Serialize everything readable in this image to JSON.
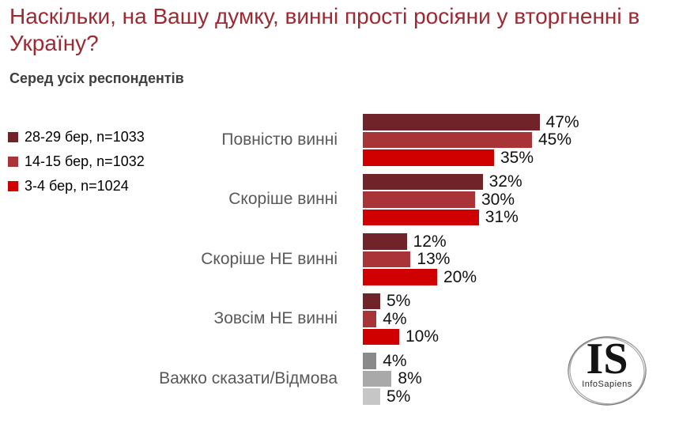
{
  "header": {
    "title": "Наскільки, на Вашу думку, винні прості росіяни у вторгненні в Україну?",
    "subtitle": "Серед усіх респондентів"
  },
  "legend": {
    "position": "left",
    "items": [
      {
        "label": "28-29 бер, n=1033",
        "color": "#702329"
      },
      {
        "label": "14-15 бер, n=1032",
        "color": "#A93438"
      },
      {
        "label": "3-4 бер, n=1024",
        "color": "#D00000"
      }
    ]
  },
  "chart_data": {
    "type": "bar",
    "orientation": "horizontal",
    "title": "Наскільки, на Вашу думку, винні прості росіяни у вторгненні в Україну?",
    "subtitle": "Серед усіх респондентів",
    "xlim": [
      0,
      50
    ],
    "grid": false,
    "legend_position": "left",
    "value_suffix": "%",
    "categories": [
      "Повністю винні",
      "Скоріше винні",
      "Скоріше НЕ винні",
      "Зовсім НЕ винні",
      "Важко сказати/Відмова"
    ],
    "series": [
      {
        "name": "28-29 бер, n=1033",
        "color": "#702329",
        "neutral_color": "#8A8A8A",
        "values": [
          47,
          32,
          12,
          5,
          4
        ]
      },
      {
        "name": "14-15 бер, n=1032",
        "color": "#A93438",
        "neutral_color": "#A9A9A9",
        "values": [
          45,
          30,
          13,
          4,
          8
        ]
      },
      {
        "name": "3-4 бер, n=1024",
        "color": "#D00000",
        "neutral_color": "#C6C6C6",
        "values": [
          35,
          31,
          20,
          10,
          5
        ]
      }
    ],
    "neutral_category_index": 4
  },
  "logo": {
    "monogram": "IS",
    "name": "InfoSapiens"
  }
}
